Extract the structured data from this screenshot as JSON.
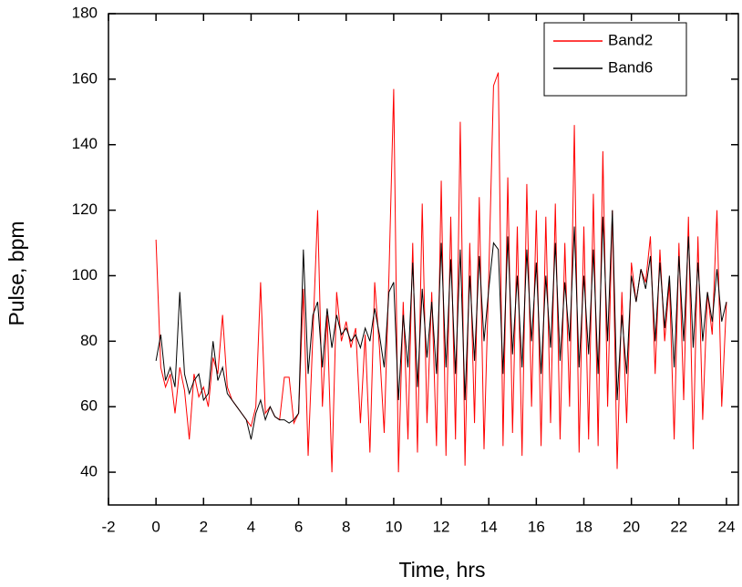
{
  "chart_data": {
    "type": "line",
    "xlabel": "Time, hrs",
    "ylabel": "Pulse, bpm",
    "xlim": [
      -2,
      24.5
    ],
    "ylim": [
      30,
      180
    ],
    "xticks": [
      -2,
      0,
      2,
      4,
      6,
      8,
      10,
      12,
      14,
      16,
      18,
      20,
      22,
      24
    ],
    "yticks": [
      40,
      60,
      80,
      100,
      120,
      140,
      160,
      180
    ],
    "legend": "upper right",
    "x": [
      0,
      0.2,
      0.4,
      0.6,
      0.8,
      1,
      1.2,
      1.4,
      1.6,
      1.8,
      2,
      2.2,
      2.4,
      2.6,
      2.8,
      3,
      3.2,
      3.4,
      3.6,
      3.8,
      4,
      4.2,
      4.4,
      4.6,
      4.8,
      5,
      5.2,
      5.4,
      5.6,
      5.8,
      6,
      6.2,
      6.4,
      6.6,
      6.8,
      7,
      7.2,
      7.4,
      7.6,
      7.8,
      8,
      8.2,
      8.4,
      8.6,
      8.8,
      9,
      9.2,
      9.4,
      9.6,
      9.8,
      10,
      10.2,
      10.4,
      10.6,
      10.8,
      11,
      11.2,
      11.4,
      11.6,
      11.8,
      12,
      12.2,
      12.4,
      12.6,
      12.8,
      13,
      13.2,
      13.4,
      13.6,
      13.8,
      14,
      14.2,
      14.4,
      14.6,
      14.8,
      15,
      15.2,
      15.4,
      15.6,
      15.8,
      16,
      16.2,
      16.4,
      16.6,
      16.8,
      17,
      17.2,
      17.4,
      17.6,
      17.8,
      18,
      18.2,
      18.4,
      18.6,
      18.8,
      19,
      19.2,
      19.4,
      19.6,
      19.8,
      20,
      20.2,
      20.4,
      20.6,
      20.8,
      21,
      21.2,
      21.4,
      21.6,
      21.8,
      22,
      22.2,
      22.4,
      22.6,
      22.8,
      23,
      23.2,
      23.4,
      23.6,
      23.8,
      24
    ],
    "series": [
      {
        "name": "Band2",
        "color": "#ff0000",
        "values": [
          111,
          72,
          66,
          70,
          58,
          72,
          65,
          50,
          70,
          63,
          66,
          60,
          75,
          70,
          88,
          66,
          62,
          60,
          58,
          56,
          54,
          60,
          98,
          58,
          60,
          57,
          56,
          69,
          69,
          55,
          58,
          96,
          45,
          82,
          120,
          60,
          88,
          40,
          95,
          80,
          86,
          78,
          84,
          55,
          82,
          46,
          98,
          78,
          52,
          100,
          157,
          40,
          92,
          50,
          110,
          46,
          122,
          55,
          95,
          48,
          129,
          45,
          118,
          50,
          147,
          42,
          110,
          55,
          124,
          47,
          100,
          158,
          162,
          48,
          130,
          52,
          115,
          45,
          128,
          60,
          120,
          48,
          118,
          55,
          122,
          50,
          110,
          60,
          146,
          46,
          115,
          50,
          125,
          48,
          138,
          60,
          120,
          41,
          95,
          55,
          104,
          92,
          102,
          98,
          112,
          70,
          108,
          80,
          98,
          50,
          110,
          62,
          118,
          47,
          112,
          56,
          95,
          82,
          120,
          60,
          92
        ]
      },
      {
        "name": "Band6",
        "color": "#000000",
        "values": [
          74,
          82,
          68,
          72,
          66,
          95,
          70,
          64,
          68,
          70,
          62,
          64,
          80,
          68,
          72,
          64,
          62,
          60,
          58,
          56,
          50,
          58,
          62,
          56,
          60,
          57,
          56,
          56,
          55,
          56,
          58,
          108,
          70,
          88,
          92,
          72,
          90,
          78,
          88,
          82,
          84,
          80,
          82,
          78,
          84,
          80,
          90,
          82,
          72,
          95,
          98,
          62,
          88,
          72,
          104,
          66,
          96,
          75,
          92,
          70,
          110,
          72,
          105,
          70,
          108,
          62,
          100,
          74,
          106,
          80,
          96,
          110,
          108,
          70,
          112,
          76,
          100,
          72,
          108,
          80,
          104,
          70,
          100,
          78,
          110,
          74,
          98,
          80,
          115,
          72,
          100,
          76,
          108,
          70,
          118,
          80,
          120,
          62,
          88,
          70,
          100,
          92,
          102,
          96,
          106,
          80,
          104,
          84,
          100,
          72,
          106,
          80,
          112,
          78,
          104,
          80,
          95,
          86,
          102,
          86,
          92
        ]
      }
    ]
  }
}
